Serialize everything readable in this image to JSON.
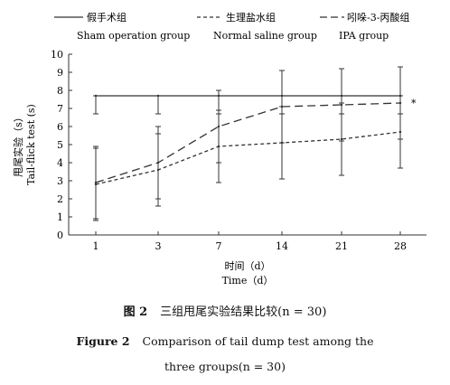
{
  "chart_data": {
    "type": "line",
    "categories": [
      "1",
      "3",
      "7",
      "14",
      "21",
      "28"
    ],
    "ylabel_cn": "甩尾实验（s）",
    "ylabel_en": "Tail-flick test (s)",
    "xlabel_cn": "时间（d）",
    "xlabel_en": "Time（d）",
    "ylim": [
      0,
      10
    ],
    "yticks": [
      "0",
      "1",
      "2",
      "3",
      "4",
      "5",
      "6",
      "7",
      "8",
      "9",
      "10"
    ],
    "legend_position": "top",
    "annotation": "*",
    "series": [
      {
        "name_cn": "假手术组",
        "name_en": "Sham operation group",
        "style": "solid",
        "values": [
          7.7,
          7.7,
          7.7,
          7.7,
          7.7,
          7.7
        ],
        "err_low": [
          6.7,
          6.7,
          6.7,
          6.7,
          6.7,
          6.7
        ],
        "err_high": [
          7.7,
          7.7,
          7.7,
          7.7,
          7.7,
          7.7
        ]
      },
      {
        "name_cn": "生理盐水组",
        "name_en": "Normal saline group",
        "style": "short-dash",
        "values": [
          2.8,
          3.6,
          4.9,
          5.1,
          5.3,
          5.7
        ],
        "err_low": [
          0.8,
          1.6,
          2.9,
          3.1,
          3.3,
          3.7
        ],
        "err_high": [
          4.8,
          5.6,
          6.9,
          7.1,
          7.3,
          7.7
        ]
      },
      {
        "name_cn": "吲哚-3-丙酸组",
        "name_en": "IPA group",
        "style": "long-dash",
        "values": [
          2.9,
          4.0,
          6.0,
          7.1,
          7.2,
          7.3
        ],
        "err_low": [
          0.9,
          2.0,
          4.0,
          5.1,
          5.2,
          5.3
        ],
        "err_high": [
          4.9,
          6.0,
          8.0,
          9.1,
          9.2,
          9.3
        ]
      }
    ]
  },
  "caption": {
    "cn_fig": "图 2",
    "cn_text": "三组甩尾实验结果比较(n = 30)",
    "en_fig": "Figure 2",
    "en_text": "Comparison of tail dump test among the",
    "en_text2": "three groups(n = 30)"
  }
}
